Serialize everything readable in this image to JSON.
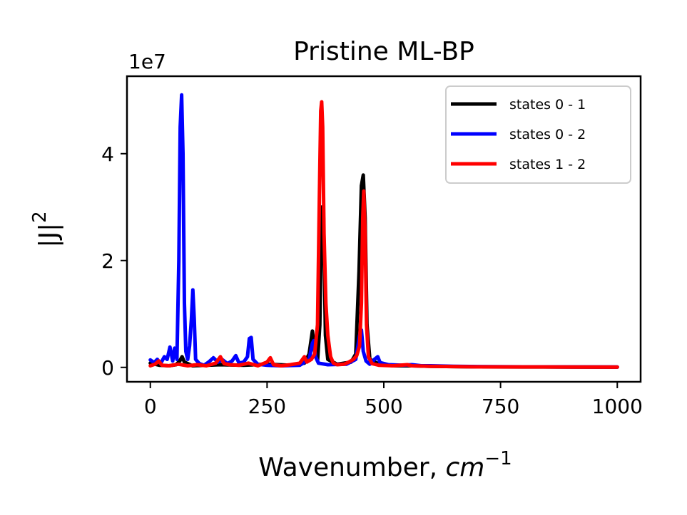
{
  "chart_data": {
    "type": "line",
    "title": "Pristine ML-BP",
    "xlabel": "Wavenumber, ",
    "xlabel_unit": "cm",
    "xlabel_unit_exp": "−1",
    "ylabel": "|J|",
    "ylabel_exp": "2",
    "y_offset_label": "1e7",
    "xlim": [
      -50,
      1050
    ],
    "ylim": [
      -2700000,
      54500000
    ],
    "x_ticks": [
      0,
      250,
      500,
      750,
      1000
    ],
    "x_tick_labels": [
      "0",
      "250",
      "500",
      "750",
      "1000"
    ],
    "y_ticks": [
      0,
      20000000,
      40000000
    ],
    "y_tick_labels": [
      "0",
      "2",
      "4"
    ],
    "grid": false,
    "legend_position": "top-right",
    "series": [
      {
        "name": "states 0 - 1",
        "color": "#000000",
        "points": [
          [
            0,
            800000
          ],
          [
            20,
            400000
          ],
          [
            40,
            300000
          ],
          [
            55,
            500000
          ],
          [
            63,
            1200000
          ],
          [
            68,
            2000000
          ],
          [
            73,
            1000000
          ],
          [
            90,
            300000
          ],
          [
            120,
            400000
          ],
          [
            150,
            500000
          ],
          [
            200,
            400000
          ],
          [
            250,
            600000
          ],
          [
            300,
            400000
          ],
          [
            330,
            800000
          ],
          [
            340,
            2500000
          ],
          [
            347,
            6800000
          ],
          [
            352,
            3000000
          ],
          [
            358,
            1200000
          ],
          [
            363,
            8000000
          ],
          [
            367,
            30000000
          ],
          [
            371,
            28000000
          ],
          [
            375,
            6000000
          ],
          [
            380,
            1500000
          ],
          [
            400,
            600000
          ],
          [
            430,
            1000000
          ],
          [
            440,
            2500000
          ],
          [
            447,
            18000000
          ],
          [
            452,
            34000000
          ],
          [
            456,
            36000000
          ],
          [
            460,
            28000000
          ],
          [
            464,
            8000000
          ],
          [
            470,
            1500000
          ],
          [
            490,
            600000
          ],
          [
            520,
            300000
          ],
          [
            560,
            300000
          ],
          [
            600,
            200000
          ],
          [
            650,
            150000
          ],
          [
            700,
            100000
          ],
          [
            800,
            80000
          ],
          [
            900,
            60000
          ],
          [
            1000,
            50000
          ]
        ]
      },
      {
        "name": "states 0 - 2",
        "color": "#0000ff",
        "points": [
          [
            0,
            1400000
          ],
          [
            8,
            900000
          ],
          [
            15,
            1500000
          ],
          [
            22,
            700000
          ],
          [
            30,
            2000000
          ],
          [
            36,
            1500000
          ],
          [
            42,
            3800000
          ],
          [
            48,
            1200000
          ],
          [
            52,
            3600000
          ],
          [
            57,
            1500000
          ],
          [
            61,
            20000000
          ],
          [
            64,
            45000000
          ],
          [
            67,
            51000000
          ],
          [
            70,
            40000000
          ],
          [
            73,
            12000000
          ],
          [
            76,
            3000000
          ],
          [
            80,
            1500000
          ],
          [
            84,
            4000000
          ],
          [
            88,
            9000000
          ],
          [
            91,
            14500000
          ],
          [
            94,
            9000000
          ],
          [
            97,
            1500000
          ],
          [
            105,
            700000
          ],
          [
            115,
            400000
          ],
          [
            125,
            1000000
          ],
          [
            135,
            1800000
          ],
          [
            145,
            1000000
          ],
          [
            155,
            1400000
          ],
          [
            165,
            700000
          ],
          [
            175,
            1200000
          ],
          [
            183,
            2200000
          ],
          [
            190,
            800000
          ],
          [
            200,
            1000000
          ],
          [
            208,
            2000000
          ],
          [
            212,
            5400000
          ],
          [
            216,
            5600000
          ],
          [
            220,
            1500000
          ],
          [
            230,
            600000
          ],
          [
            250,
            400000
          ],
          [
            280,
            300000
          ],
          [
            320,
            400000
          ],
          [
            340,
            1500000
          ],
          [
            347,
            4500000
          ],
          [
            350,
            5000000
          ],
          [
            354,
            2000000
          ],
          [
            360,
            800000
          ],
          [
            380,
            500000
          ],
          [
            420,
            600000
          ],
          [
            440,
            1500000
          ],
          [
            448,
            6000000
          ],
          [
            452,
            7000000
          ],
          [
            456,
            3000000
          ],
          [
            462,
            1200000
          ],
          [
            470,
            600000
          ],
          [
            480,
            1500000
          ],
          [
            487,
            2000000
          ],
          [
            492,
            900000
          ],
          [
            510,
            500000
          ],
          [
            540,
            400000
          ],
          [
            560,
            500000
          ],
          [
            580,
            300000
          ],
          [
            600,
            300000
          ],
          [
            650,
            200000
          ],
          [
            700,
            150000
          ],
          [
            800,
            100000
          ],
          [
            900,
            80000
          ],
          [
            1000,
            60000
          ]
        ]
      },
      {
        "name": "states 1 - 2",
        "color": "#ff0000",
        "points": [
          [
            0,
            300000
          ],
          [
            10,
            600000
          ],
          [
            18,
            1200000
          ],
          [
            25,
            400000
          ],
          [
            40,
            300000
          ],
          [
            60,
            600000
          ],
          [
            80,
            300000
          ],
          [
            100,
            500000
          ],
          [
            120,
            300000
          ],
          [
            140,
            800000
          ],
          [
            150,
            2000000
          ],
          [
            158,
            700000
          ],
          [
            170,
            500000
          ],
          [
            190,
            400000
          ],
          [
            210,
            800000
          ],
          [
            230,
            300000
          ],
          [
            250,
            1000000
          ],
          [
            257,
            1800000
          ],
          [
            264,
            500000
          ],
          [
            280,
            300000
          ],
          [
            300,
            500000
          ],
          [
            320,
            800000
          ],
          [
            330,
            2000000
          ],
          [
            335,
            1000000
          ],
          [
            345,
            1500000
          ],
          [
            352,
            2500000
          ],
          [
            358,
            8000000
          ],
          [
            362,
            32000000
          ],
          [
            365,
            48000000
          ],
          [
            367,
            49700000
          ],
          [
            369,
            45000000
          ],
          [
            372,
            25000000
          ],
          [
            376,
            12000000
          ],
          [
            380,
            6000000
          ],
          [
            386,
            2000000
          ],
          [
            392,
            800000
          ],
          [
            400,
            500000
          ],
          [
            415,
            600000
          ],
          [
            425,
            1000000
          ],
          [
            435,
            1500000
          ],
          [
            442,
            2200000
          ],
          [
            448,
            4000000
          ],
          [
            452,
            12000000
          ],
          [
            455,
            28000000
          ],
          [
            457,
            33000000
          ],
          [
            460,
            25000000
          ],
          [
            463,
            8000000
          ],
          [
            467,
            2000000
          ],
          [
            475,
            700000
          ],
          [
            490,
            400000
          ],
          [
            520,
            300000
          ],
          [
            550,
            500000
          ],
          [
            560,
            300000
          ],
          [
            600,
            200000
          ],
          [
            650,
            150000
          ],
          [
            700,
            100000
          ],
          [
            800,
            80000
          ],
          [
            900,
            60000
          ],
          [
            1000,
            50000
          ]
        ]
      }
    ]
  }
}
